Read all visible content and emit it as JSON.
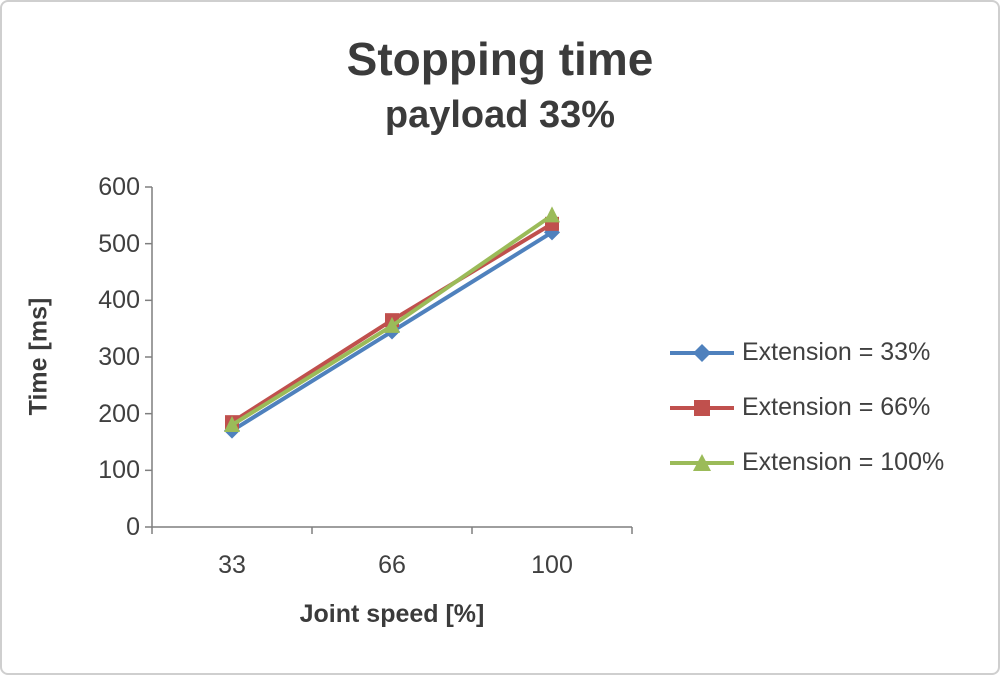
{
  "chart": {
    "title": "Stopping time",
    "subtitle": "payload 33%",
    "xlabel": "Joint speed [%]",
    "ylabel": "Time [ms]"
  },
  "chart_data": {
    "type": "line",
    "title": "Stopping time",
    "subtitle": "payload 33%",
    "xlabel": "Joint speed [%]",
    "ylabel": "Time [ms]",
    "categories": [
      "33",
      "66",
      "100"
    ],
    "series": [
      {
        "name": "Extension = 33%",
        "values": [
          170,
          345,
          520
        ],
        "color": "#4f81bd",
        "marker": "diamond"
      },
      {
        "name": "Extension = 66%",
        "values": [
          185,
          365,
          535
        ],
        "color": "#c0504d",
        "marker": "square"
      },
      {
        "name": "Extension = 100%",
        "values": [
          180,
          355,
          550
        ],
        "color": "#9bbb59",
        "marker": "triangle"
      }
    ],
    "ylim": [
      0,
      600
    ],
    "ytick_step": 100,
    "grid": false,
    "legend_position": "right",
    "axis_color": "#7f7f7f"
  }
}
